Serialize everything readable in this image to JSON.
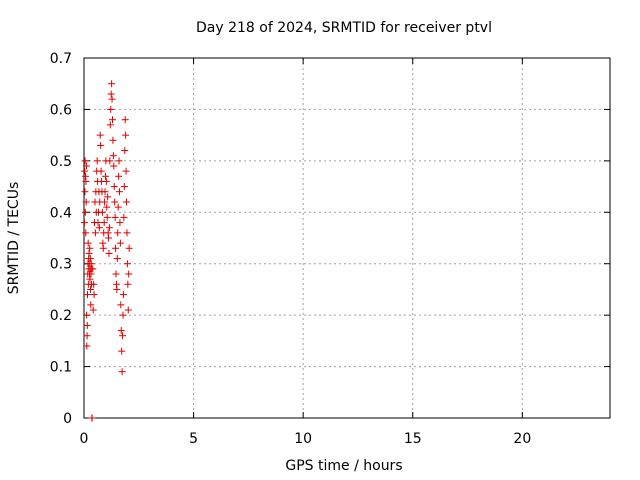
{
  "chart_data": {
    "type": "scatter",
    "title": "Day 218 of 2024, SRMTID for receiver ptvl",
    "xlabel": "GPS time / hours",
    "ylabel": "SRMTID / TECUs",
    "xlim": [
      0,
      24
    ],
    "ylim": [
      0,
      0.7
    ],
    "xticks": [
      0,
      5,
      10,
      15,
      20
    ],
    "xtick_labels": [
      "0",
      "5",
      "10",
      "15",
      "20"
    ],
    "yticks": [
      0,
      0.1,
      0.2,
      0.3,
      0.4,
      0.5,
      0.6,
      0.7
    ],
    "ytick_labels": [
      "0",
      "0.1",
      "0.2",
      "0.3",
      "0.4",
      "0.5",
      "0.6",
      "0.7"
    ],
    "grid": true,
    "marker": "+",
    "marker_color": "#e00000",
    "series": [
      {
        "points": [
          [
            0.02,
            0.38
          ],
          [
            0.03,
            0.48
          ],
          [
            0.04,
            0.44
          ],
          [
            0.05,
            0.5
          ],
          [
            0.06,
            0.4
          ],
          [
            0.07,
            0.47
          ],
          [
            0.08,
            0.36
          ],
          [
            0.09,
            0.46
          ],
          [
            0.1,
            0.42
          ],
          [
            0.11,
            0.49
          ],
          [
            0.12,
            0.2
          ],
          [
            0.13,
            0.14
          ],
          [
            0.14,
            0.16
          ],
          [
            0.15,
            0.18
          ],
          [
            0.16,
            0.24
          ],
          [
            0.17,
            0.28
          ],
          [
            0.18,
            0.3
          ],
          [
            0.19,
            0.34
          ],
          [
            0.2,
            0.26
          ],
          [
            0.21,
            0.31
          ],
          [
            0.22,
            0.29
          ],
          [
            0.23,
            0.32
          ],
          [
            0.24,
            0.3
          ],
          [
            0.25,
            0.28
          ],
          [
            0.26,
            0.33
          ],
          [
            0.27,
            0.27
          ],
          [
            0.28,
            0.29
          ],
          [
            0.29,
            0.31
          ],
          [
            0.3,
            0.25
          ],
          [
            0.31,
            0.22
          ],
          [
            0.32,
            0.28
          ],
          [
            0.33,
            0.3
          ],
          [
            0.34,
            0.26
          ],
          [
            0.35,
            0.29
          ],
          [
            0.36,
            0.0
          ],
          [
            0.37,
            0.0
          ],
          [
            0.4,
            0.29
          ],
          [
            0.42,
            0.21
          ],
          [
            0.44,
            0.26
          ],
          [
            0.46,
            0.24
          ],
          [
            0.48,
            0.38
          ],
          [
            0.5,
            0.42
          ],
          [
            0.52,
            0.36
          ],
          [
            0.54,
            0.44
          ],
          [
            0.56,
            0.4
          ],
          [
            0.58,
            0.48
          ],
          [
            0.6,
            0.5
          ],
          [
            0.62,
            0.46
          ],
          [
            0.64,
            0.38
          ],
          [
            0.66,
            0.4
          ],
          [
            0.68,
            0.44
          ],
          [
            0.7,
            0.37
          ],
          [
            0.72,
            0.42
          ],
          [
            0.74,
            0.55
          ],
          [
            0.76,
            0.53
          ],
          [
            0.78,
            0.48
          ],
          [
            0.8,
            0.46
          ],
          [
            0.82,
            0.44
          ],
          [
            0.84,
            0.4
          ],
          [
            0.86,
            0.34
          ],
          [
            0.88,
            0.33
          ],
          [
            0.9,
            0.36
          ],
          [
            0.92,
            0.38
          ],
          [
            0.94,
            0.42
          ],
          [
            0.96,
            0.44
          ],
          [
            0.98,
            0.47
          ],
          [
            1.0,
            0.5
          ],
          [
            1.02,
            0.46
          ],
          [
            1.04,
            0.41
          ],
          [
            1.06,
            0.39
          ],
          [
            1.08,
            0.43
          ],
          [
            1.1,
            0.36
          ],
          [
            1.12,
            0.35
          ],
          [
            1.14,
            0.32
          ],
          [
            1.16,
            0.37
          ],
          [
            1.18,
            0.5
          ],
          [
            1.2,
            0.57
          ],
          [
            1.22,
            0.6
          ],
          [
            1.24,
            0.63
          ],
          [
            1.26,
            0.65
          ],
          [
            1.28,
            0.62
          ],
          [
            1.3,
            0.58
          ],
          [
            1.32,
            0.54
          ],
          [
            1.34,
            0.51
          ],
          [
            1.36,
            0.49
          ],
          [
            1.38,
            0.45
          ],
          [
            1.4,
            0.42
          ],
          [
            1.42,
            0.39
          ],
          [
            1.44,
            0.33
          ],
          [
            1.46,
            0.28
          ],
          [
            1.48,
            0.26
          ],
          [
            1.5,
            0.25
          ],
          [
            1.52,
            0.31
          ],
          [
            1.54,
            0.36
          ],
          [
            1.56,
            0.41
          ],
          [
            1.58,
            0.47
          ],
          [
            1.6,
            0.5
          ],
          [
            1.62,
            0.44
          ],
          [
            1.64,
            0.38
          ],
          [
            1.66,
            0.34
          ],
          [
            1.68,
            0.22
          ],
          [
            1.7,
            0.17
          ],
          [
            1.72,
            0.13
          ],
          [
            1.74,
            0.09
          ],
          [
            1.76,
            0.16
          ],
          [
            1.78,
            0.2
          ],
          [
            1.8,
            0.24
          ],
          [
            1.82,
            0.39
          ],
          [
            1.84,
            0.45
          ],
          [
            1.86,
            0.52
          ],
          [
            1.88,
            0.58
          ],
          [
            1.9,
            0.55
          ],
          [
            1.92,
            0.48
          ],
          [
            1.94,
            0.42
          ],
          [
            1.96,
            0.36
          ],
          [
            1.98,
            0.3
          ],
          [
            2.0,
            0.26
          ],
          [
            2.02,
            0.21
          ],
          [
            2.04,
            0.28
          ],
          [
            2.06,
            0.33
          ]
        ]
      }
    ]
  }
}
